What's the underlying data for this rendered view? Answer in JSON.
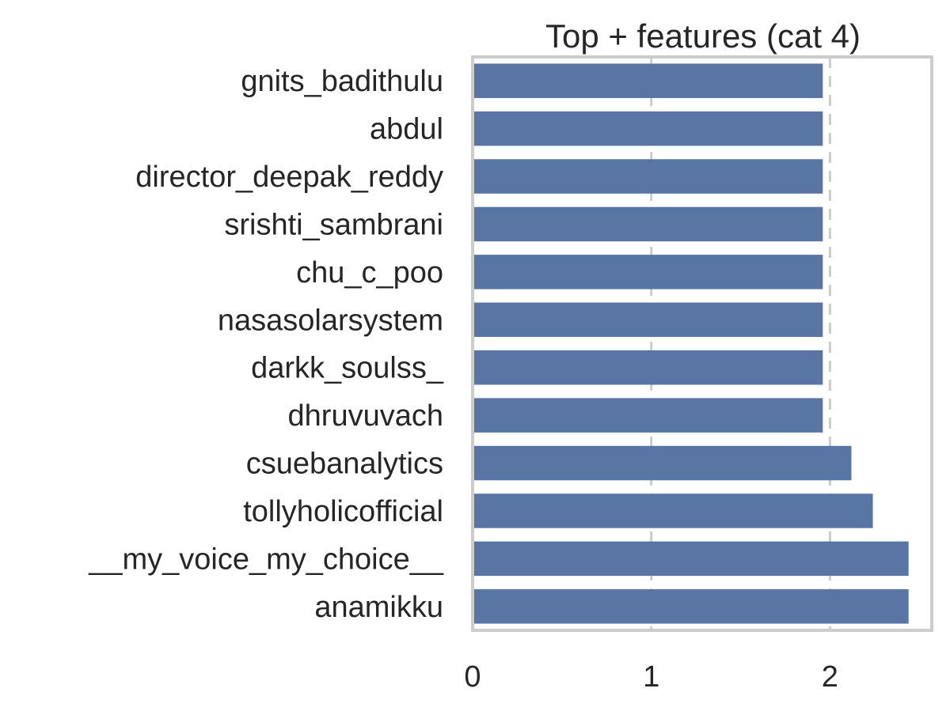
{
  "chart_data": {
    "type": "bar",
    "orientation": "horizontal",
    "title": "Top + features (cat 4)",
    "xlabel": "",
    "ylabel": "",
    "categories": [
      "gnits_badithulu",
      "abdul",
      "director_deepak_reddy",
      "srishti_sambrani",
      "chu_c_poo",
      "nasasolarsystem",
      "darkk_soulss_",
      "dhruvuvach",
      "csuebanalytics",
      "tollyholicofficial",
      "__my_voice_my_choice__",
      "anamikku"
    ],
    "values": [
      1.96,
      1.96,
      1.96,
      1.96,
      1.96,
      1.96,
      1.96,
      1.96,
      2.12,
      2.24,
      2.44,
      2.44
    ],
    "xlim": [
      0,
      2.57
    ],
    "xticks": [
      0,
      1,
      2
    ],
    "xtick_labels": [
      "0",
      "1",
      "2"
    ],
    "grid": true,
    "legend": "none",
    "colors": {
      "bar": "#5875a4",
      "grid": "#cccccc",
      "frame": "#cccccc",
      "text": "#262626"
    }
  }
}
